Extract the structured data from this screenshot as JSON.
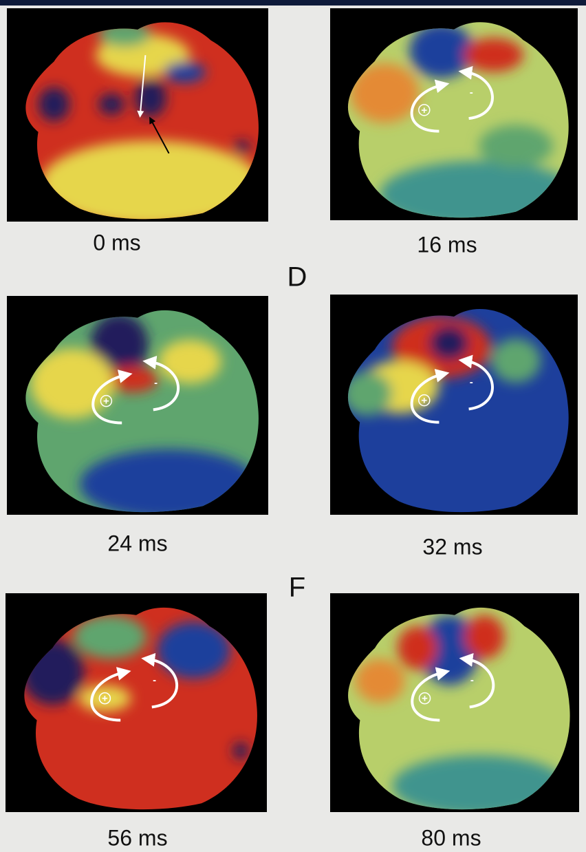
{
  "figure": {
    "panels": [
      {
        "label": "0 ms"
      },
      {
        "label": "16 ms",
        "signs": [
          "+",
          "-"
        ]
      },
      {
        "label": "24 ms",
        "signs": [
          "+",
          "-"
        ]
      },
      {
        "label": "32 ms",
        "signs": [
          "+",
          "-"
        ]
      },
      {
        "label": "56 ms",
        "signs": [
          "+",
          "-"
        ]
      },
      {
        "label": "80 ms",
        "signs": [
          "+",
          "-"
        ]
      }
    ],
    "letters": [
      "D",
      "F"
    ]
  }
}
